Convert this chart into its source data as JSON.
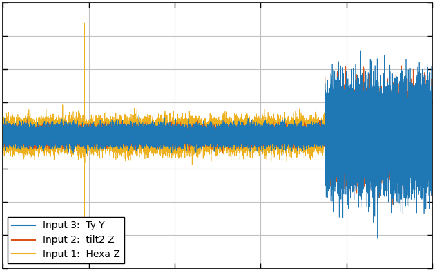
{
  "title": "",
  "legend_labels": [
    "Input 1:  Hexa Z",
    "Input 2:  tilt2 Z",
    "Input 3:  Ty Y"
  ],
  "colors": [
    "#1f77b4",
    "#d95319",
    "#edb120"
  ],
  "linewidths": [
    0.5,
    0.5,
    0.5
  ],
  "n_points": 50000,
  "seed": 42,
  "background_color": "#ffffff",
  "grid_color": "#c0c0c0",
  "ylim": [
    -10,
    10
  ],
  "xlim": [
    0,
    50000
  ],
  "figsize": [
    6.3,
    3.92
  ],
  "dpi": 100,
  "legend_loc": "lower left",
  "legend_fontsize": 10,
  "phase_change_point": 37500,
  "amplitude_before_blue": 0.35,
  "amplitude_after_blue": 1.8,
  "amplitude_before_orange": 0.3,
  "amplitude_after_orange": 1.4,
  "amplitude_yellow_before": 0.55,
  "amplitude_yellow_after": 0.55,
  "spike_x": 9500,
  "spike_height": 8.5,
  "spike_neg": -7.0
}
